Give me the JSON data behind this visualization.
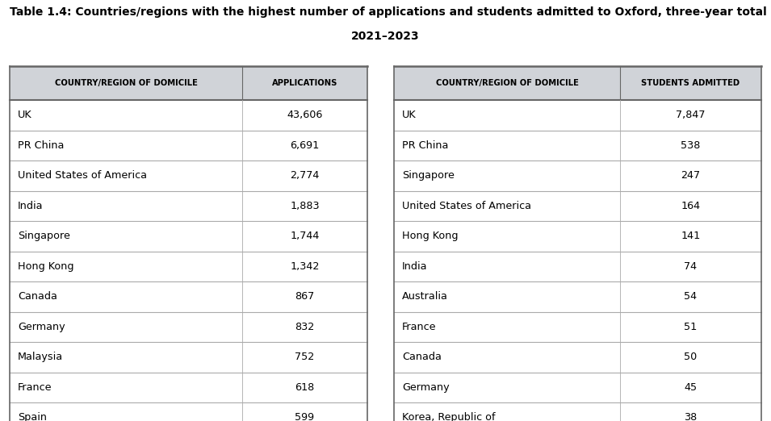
{
  "title_line1": "Table 1.4: Countries/regions with the highest number of applications and students admitted to Oxford, three-year total",
  "title_line2": "2021–2023",
  "left_header_col1": "COUNTRY/REGION OF DOMICILE",
  "left_header_col2": "APPLICATIONS",
  "right_header_col1": "COUNTRY/REGION OF DOMICILE",
  "right_header_col2": "STUDENTS ADMITTED",
  "left_countries": [
    "UK",
    "PR China",
    "United States of America",
    "India",
    "Singapore",
    "Hong Kong",
    "Canada",
    "Germany",
    "Malaysia",
    "France",
    "Spain"
  ],
  "left_values": [
    "43,606",
    "6,691",
    "2,774",
    "1,883",
    "1,744",
    "1,342",
    "867",
    "832",
    "752",
    "618",
    "599"
  ],
  "right_countries": [
    "UK",
    "PR China",
    "Singapore",
    "United States of America",
    "Hong Kong",
    "India",
    "Australia",
    "France",
    "Canada",
    "Germany",
    "Korea, Republic of"
  ],
  "right_values": [
    "7,847",
    "538",
    "247",
    "164",
    "141",
    "74",
    "54",
    "51",
    "50",
    "45",
    "38"
  ],
  "bg_color": "#ffffff",
  "header_bg_color": "#d0d3d8",
  "title_color": "#000000",
  "line_color": "#aaaaaa",
  "thick_line_color": "#666666",
  "title_fontsize": 10.0,
  "header_fontsize": 7.2,
  "data_fontsize": 9.2,
  "fig_width": 9.55,
  "fig_height": 5.22,
  "fig_dpi": 100
}
